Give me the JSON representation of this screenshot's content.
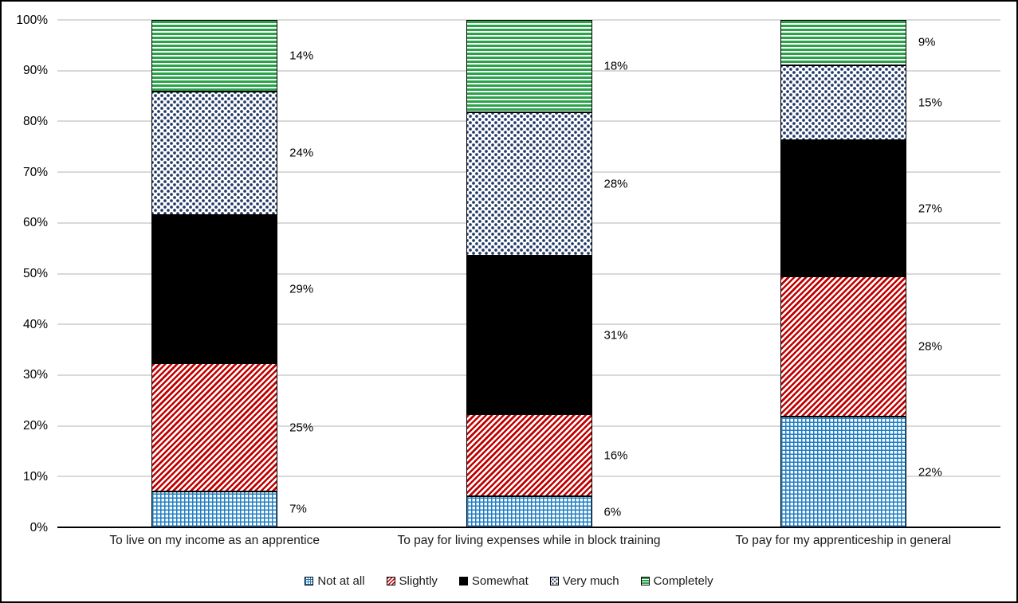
{
  "chart_data": {
    "type": "bar",
    "subtype": "stacked-100-percent",
    "title": "",
    "xlabel": "",
    "ylabel": "",
    "ylim": [
      0,
      100
    ],
    "grid": true,
    "legend_position": "bottom",
    "y_ticks": [
      "0%",
      "10%",
      "20%",
      "30%",
      "40%",
      "50%",
      "60%",
      "70%",
      "80%",
      "90%",
      "100%"
    ],
    "categories": [
      "To live on my income as an apprentice",
      "To pay for living expenses while in block training",
      "To pay for my apprenticeship in general"
    ],
    "series": [
      {
        "name": "Not at all",
        "pattern": "grid",
        "color": "#1F7EC2",
        "values": [
          7,
          6,
          22
        ]
      },
      {
        "name": "Slightly",
        "pattern": "diagonal-stripes",
        "color": "#C00000",
        "values": [
          25,
          16,
          28
        ]
      },
      {
        "name": "Somewhat",
        "pattern": "solid",
        "color": "#000000",
        "values": [
          29,
          31,
          27
        ]
      },
      {
        "name": "Very much",
        "pattern": "dots",
        "color": "#1F3864",
        "values": [
          24,
          28,
          15
        ]
      },
      {
        "name": "Completely",
        "pattern": "horizontal-stripes",
        "color": "#28A348",
        "values": [
          14,
          18,
          9
        ]
      }
    ],
    "data_labels": [
      [
        "7%",
        "25%",
        "29%",
        "24%",
        "14%"
      ],
      [
        "6%",
        "16%",
        "31%",
        "28%",
        "18%"
      ],
      [
        "22%",
        "28%",
        "27%",
        "15%",
        "9%"
      ]
    ],
    "gridline_color": "#D9D9D9",
    "axis_line_color": "#000000"
  }
}
